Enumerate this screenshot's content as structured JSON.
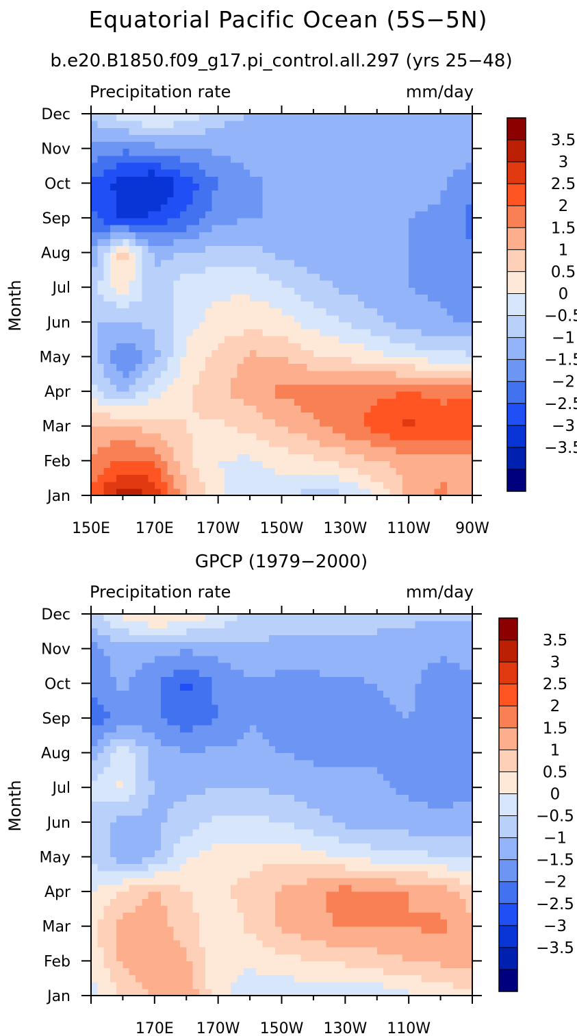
{
  "figure": {
    "title": "Equatorial Pacific Ocean (5S−5N)",
    "subtitle": "b.e20.B1850.f09_g17.pi_control.all.297 (yrs 25−48)"
  },
  "chart_data": [
    {
      "type": "heatmap",
      "title": "b.e20.B1850.f09_g17.pi_control.all.297 (yrs 25−48)",
      "variable_label": "Precipitation rate",
      "units_label": "mm/day",
      "xlabel": "",
      "ylabel": "Month",
      "x_tick_labels": [
        "150E",
        "170E",
        "170W",
        "150W",
        "130W",
        "110W",
        "90W"
      ],
      "x_tick_values": [
        150,
        170,
        190,
        210,
        230,
        250,
        270
      ],
      "xlim": [
        150,
        270
      ],
      "y_tick_labels": [
        "Jan",
        "Feb",
        "Mar",
        "Apr",
        "May",
        "Jun",
        "Jul",
        "Aug",
        "Sep",
        "Oct",
        "Nov",
        "Dec"
      ],
      "x_grid": [
        150,
        160,
        170,
        180,
        190,
        200,
        210,
        220,
        230,
        240,
        250,
        260,
        270
      ],
      "values": [
        [
          2.7,
          3.9,
          3.4,
          1.6,
          0.6,
          0.2,
          0.1,
          -0.2,
          -0.1,
          0.6,
          1.6,
          2.1,
          1.8
        ],
        [
          2.1,
          2.6,
          2.4,
          1.1,
          0.5,
          0.4,
          0.7,
          0.9,
          1.2,
          1.5,
          1.7,
          1.9,
          1.8
        ],
        [
          1.5,
          1.6,
          1.3,
          1.0,
          0.9,
          1.2,
          1.5,
          1.9,
          2.3,
          2.7,
          3.1,
          2.9,
          2.9
        ],
        [
          0.2,
          -0.6,
          0.3,
          0.9,
          1.4,
          1.7,
          2.1,
          2.3,
          2.4,
          2.4,
          2.5,
          2.3,
          2.4
        ],
        [
          -0.3,
          -1.6,
          -0.7,
          0.6,
          1.2,
          1.6,
          1.5,
          1.1,
          0.9,
          0.7,
          0.4,
          0.2,
          0.1
        ],
        [
          -0.5,
          -0.5,
          -0.4,
          0.3,
          0.7,
          0.8,
          0.7,
          0.3,
          0.0,
          -0.4,
          -0.8,
          -0.9,
          -1.1
        ],
        [
          -0.2,
          0.8,
          -0.4,
          0.3,
          0.4,
          0.4,
          0.1,
          -0.3,
          -0.6,
          -0.8,
          -1.0,
          -1.1,
          -1.3
        ],
        [
          -0.9,
          1.3,
          -0.6,
          -0.5,
          -0.3,
          -0.3,
          -0.6,
          -0.8,
          -0.9,
          -1.0,
          -1.0,
          -1.1,
          -1.5
        ],
        [
          -1.9,
          -2.6,
          -2.4,
          -1.9,
          -1.2,
          -1.0,
          -1.0,
          -1.0,
          -1.0,
          -1.0,
          -1.0,
          -1.1,
          -1.6
        ],
        [
          -2.1,
          -2.7,
          -3.1,
          -2.3,
          -1.5,
          -1.1,
          -0.9,
          -0.9,
          -0.9,
          -0.9,
          -0.8,
          -0.9,
          -1.5
        ],
        [
          -1.1,
          -1.4,
          -1.2,
          -1.0,
          -0.9,
          -0.8,
          -0.7,
          -0.6,
          -0.6,
          -0.6,
          -0.6,
          -0.6,
          -0.7
        ],
        [
          -0.4,
          0.3,
          0.7,
          0.3,
          -0.3,
          -0.5,
          -0.5,
          -0.5,
          -0.5,
          -0.5,
          -0.5,
          -0.5,
          -0.5
        ]
      ],
      "colorbar": {
        "labels": [
          "3.5",
          "3",
          "2.5",
          "2",
          "1.5",
          "1",
          "0.5",
          "0",
          "−0.5",
          "−1",
          "−1.5",
          "−2",
          "−2.5",
          "−3",
          "−3.5"
        ],
        "levels": [
          3.5,
          3,
          2.5,
          2,
          1.5,
          1,
          0.5,
          0,
          -0.5,
          -1,
          -1.5,
          -2,
          -2.5,
          -3,
          -3.5
        ],
        "colors": [
          "#00007f",
          "#0020b0",
          "#0a35d6",
          "#1f4ff5",
          "#4272f0",
          "#6d95f4",
          "#93b4f8",
          "#b9d0fb",
          "#d8e6fb",
          "#fee9d8",
          "#fdd0b7",
          "#fcae8d",
          "#f98055",
          "#ff5522",
          "#e13a10",
          "#bb2005",
          "#8c0000"
        ]
      }
    },
    {
      "type": "heatmap",
      "title": "GPCP (1979−2000)",
      "variable_label": "Precipitation rate",
      "units_label": "mm/day",
      "xlabel": "",
      "ylabel": "Month",
      "x_tick_labels": [
        "170E",
        "170W",
        "150W",
        "130W",
        "110W"
      ],
      "x_tick_values": [
        170,
        190,
        210,
        230,
        250
      ],
      "xlim": [
        150,
        270
      ],
      "y_tick_labels": [
        "Jan",
        "Feb",
        "Mar",
        "Apr",
        "May",
        "Jun",
        "Jul",
        "Aug",
        "Sep",
        "Oct",
        "Nov",
        "Dec"
      ],
      "x_grid": [
        150,
        160,
        170,
        180,
        190,
        200,
        210,
        220,
        230,
        240,
        250,
        260,
        270
      ],
      "values": [
        [
          0.3,
          1.1,
          1.5,
          1.9,
          0.7,
          0.2,
          0.1,
          0.1,
          -0.1,
          0.1,
          0.4,
          0.6,
          0.9
        ],
        [
          0.6,
          1.6,
          1.9,
          1.6,
          0.5,
          0.6,
          0.8,
          1.0,
          1.1,
          1.3,
          1.5,
          1.6,
          1.6
        ],
        [
          0.9,
          1.7,
          1.8,
          1.2,
          0.6,
          1.1,
          1.6,
          1.8,
          2.1,
          2.0,
          2.0,
          2.1,
          1.7
        ],
        [
          0.4,
          1.1,
          1.6,
          1.0,
          0.9,
          1.2,
          1.6,
          1.9,
          2.2,
          2.1,
          2.0,
          1.8,
          1.2
        ],
        [
          0.0,
          -0.9,
          -0.6,
          0.5,
          0.7,
          0.8,
          0.9,
          0.7,
          0.5,
          0.3,
          0.2,
          0.0,
          0.0
        ],
        [
          -0.2,
          -0.7,
          -0.6,
          -0.3,
          0.2,
          0.2,
          0.0,
          -0.3,
          -0.6,
          -0.8,
          -0.8,
          -0.8,
          -0.8
        ],
        [
          0.2,
          0.6,
          -0.6,
          -0.6,
          -0.5,
          -0.5,
          -0.6,
          -0.8,
          -0.8,
          -0.9,
          -1.1,
          -1.3,
          -1.1
        ],
        [
          -0.8,
          0.4,
          -0.7,
          -1.0,
          -0.9,
          -0.9,
          -1.0,
          -1.1,
          -1.1,
          -1.1,
          -1.3,
          -1.4,
          -1.2
        ],
        [
          -1.8,
          -1.3,
          -1.4,
          -1.8,
          -1.5,
          -1.0,
          -1.2,
          -1.2,
          -1.2,
          -1.1,
          -1.0,
          -1.2,
          -1.1
        ],
        [
          -1.4,
          -0.9,
          -1.4,
          -2.1,
          -1.4,
          -1.1,
          -1.2,
          -1.2,
          -1.1,
          -1.0,
          -0.9,
          -1.3,
          -1.1
        ],
        [
          -1.2,
          -0.7,
          -0.8,
          -0.9,
          -0.8,
          -0.6,
          -0.6,
          -0.6,
          -0.6,
          -0.6,
          -0.7,
          -0.9,
          -0.8
        ],
        [
          -0.1,
          0.6,
          1.2,
          0.9,
          0.4,
          -0.1,
          -0.4,
          -0.4,
          -0.4,
          -0.4,
          -0.4,
          -0.4,
          -0.4
        ]
      ],
      "colorbar": {
        "labels": [
          "3.5",
          "3",
          "2.5",
          "2",
          "1.5",
          "1",
          "0.5",
          "0",
          "−0.5",
          "−1",
          "−1.5",
          "−2",
          "−2.5",
          "−3",
          "−3.5"
        ],
        "levels": [
          3.5,
          3,
          2.5,
          2,
          1.5,
          1,
          0.5,
          0,
          -0.5,
          -1,
          -1.5,
          -2,
          -2.5,
          -3,
          -3.5
        ],
        "colors": [
          "#00007f",
          "#0020b0",
          "#0a35d6",
          "#1f4ff5",
          "#4272f0",
          "#6d95f4",
          "#93b4f8",
          "#b9d0fb",
          "#d8e6fb",
          "#fee9d8",
          "#fdd0b7",
          "#fcae8d",
          "#f98055",
          "#ff5522",
          "#e13a10",
          "#bb2005",
          "#8c0000"
        ]
      }
    }
  ]
}
